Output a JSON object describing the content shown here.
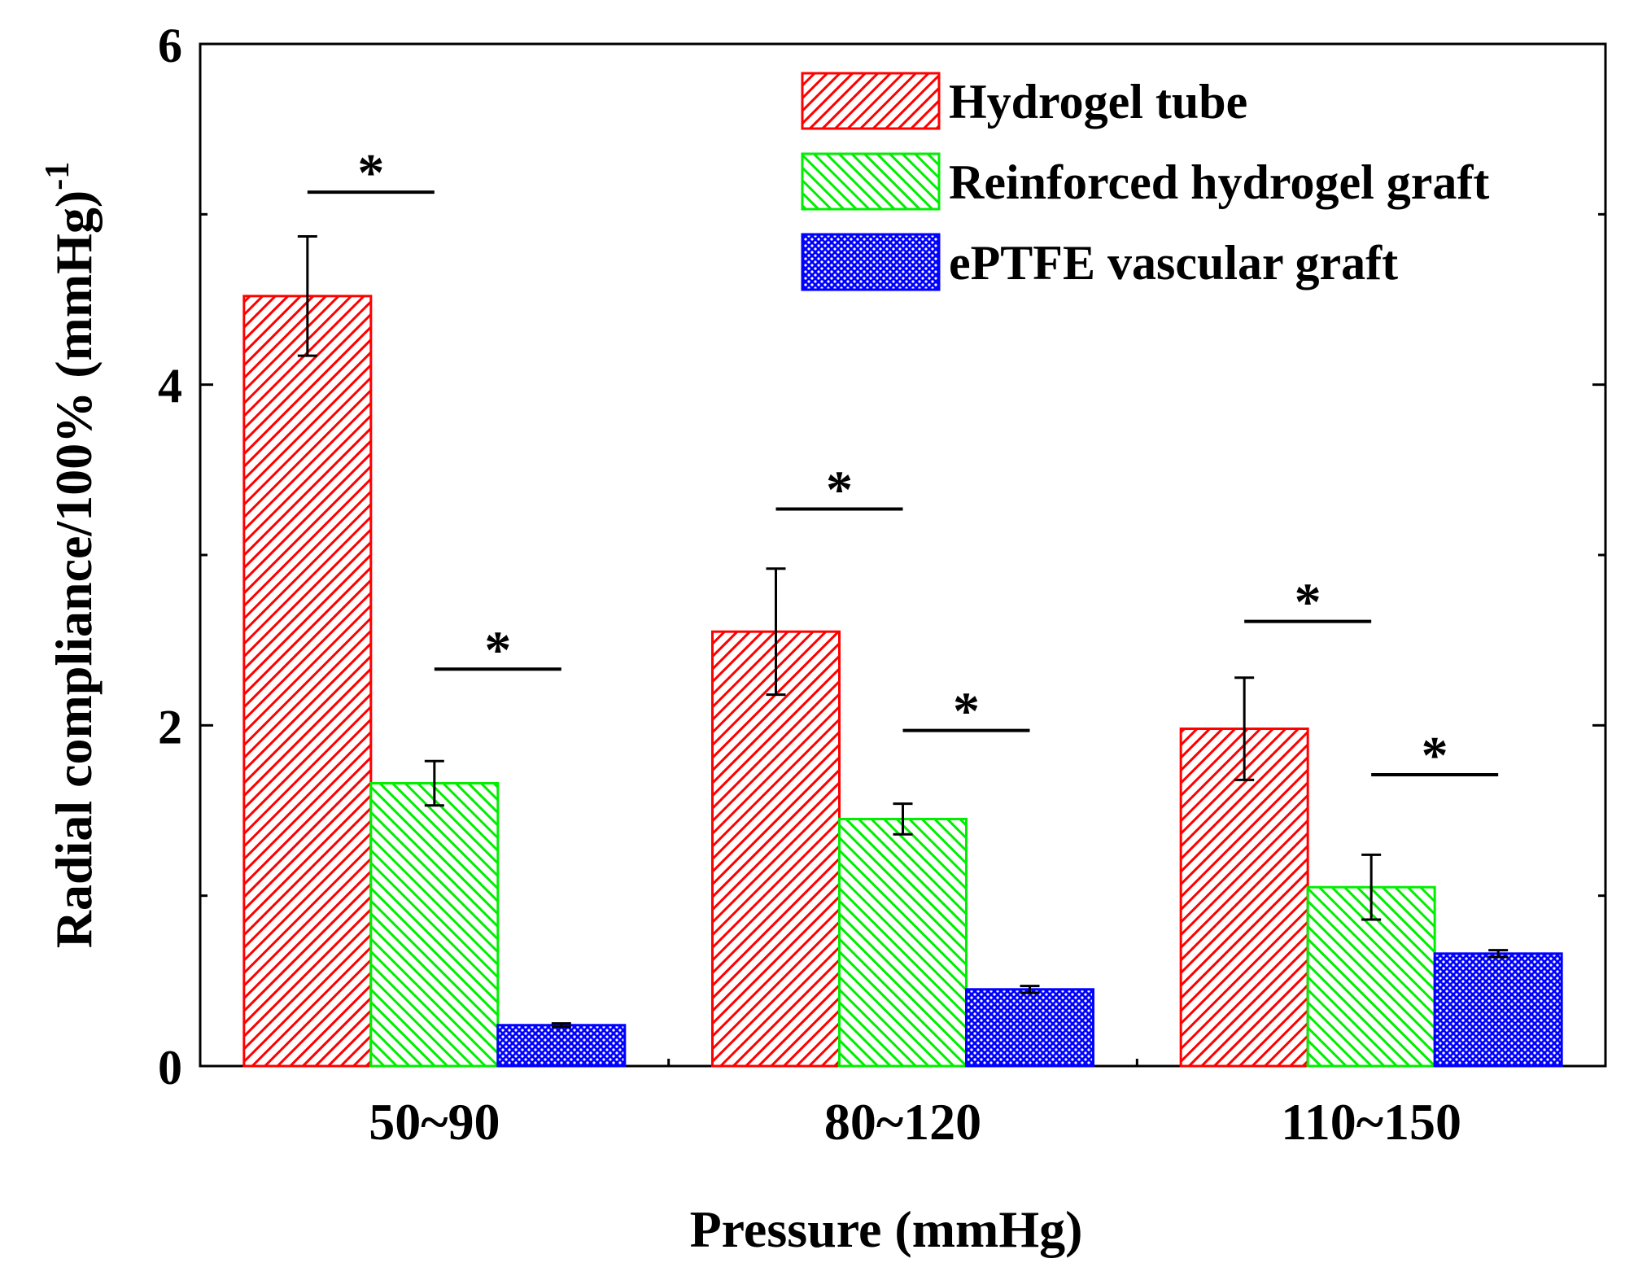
{
  "chart_data": {
    "type": "bar",
    "title": "",
    "xlabel": "Pressure (mmHg)",
    "ylabel": "Radial compliance/100% (mmHg)",
    "ylabel_superscript": "-1",
    "ylim": [
      0,
      6
    ],
    "yticks": [
      "0",
      "2",
      "4",
      "6"
    ],
    "categories": [
      "50~90",
      "80~120",
      "110~150"
    ],
    "legend_position": "top-right",
    "series": [
      {
        "name": "Hydrogel tube",
        "color": "#ff0000",
        "pattern": "diagonal-up",
        "values": [
          4.52,
          2.55,
          1.98
        ],
        "errors": [
          0.35,
          0.37,
          0.3
        ]
      },
      {
        "name": "Reinforced hydrogel graft",
        "color": "#00ee00",
        "pattern": "diagonal-down",
        "values": [
          1.66,
          1.45,
          1.05
        ],
        "errors": [
          0.13,
          0.09,
          0.19
        ]
      },
      {
        "name": "ePTFE vascular graft",
        "color": "#0000ff",
        "pattern": "dots",
        "values": [
          0.24,
          0.45,
          0.66
        ],
        "errors": [
          0.01,
          0.02,
          0.02
        ]
      }
    ],
    "significance": [
      {
        "category": "50~90",
        "label": "*",
        "pair": [
          "Hydrogel tube",
          "Reinforced hydrogel graft"
        ],
        "level": 5.13
      },
      {
        "category": "50~90",
        "label": "*",
        "pair": [
          "Reinforced hydrogel graft",
          "ePTFE vascular graft"
        ],
        "level": 2.33
      },
      {
        "category": "80~120",
        "label": "*",
        "pair": [
          "Hydrogel tube",
          "Reinforced hydrogel graft"
        ],
        "level": 3.27
      },
      {
        "category": "80~120",
        "label": "*",
        "pair": [
          "Reinforced hydrogel graft",
          "ePTFE vascular graft"
        ],
        "level": 1.97
      },
      {
        "category": "110~150",
        "label": "*",
        "pair": [
          "Hydrogel tube",
          "Reinforced hydrogel graft"
        ],
        "level": 2.61
      },
      {
        "category": "110~150",
        "label": "*",
        "pair": [
          "Reinforced hydrogel graft",
          "ePTFE vascular graft"
        ],
        "level": 1.71
      }
    ]
  }
}
